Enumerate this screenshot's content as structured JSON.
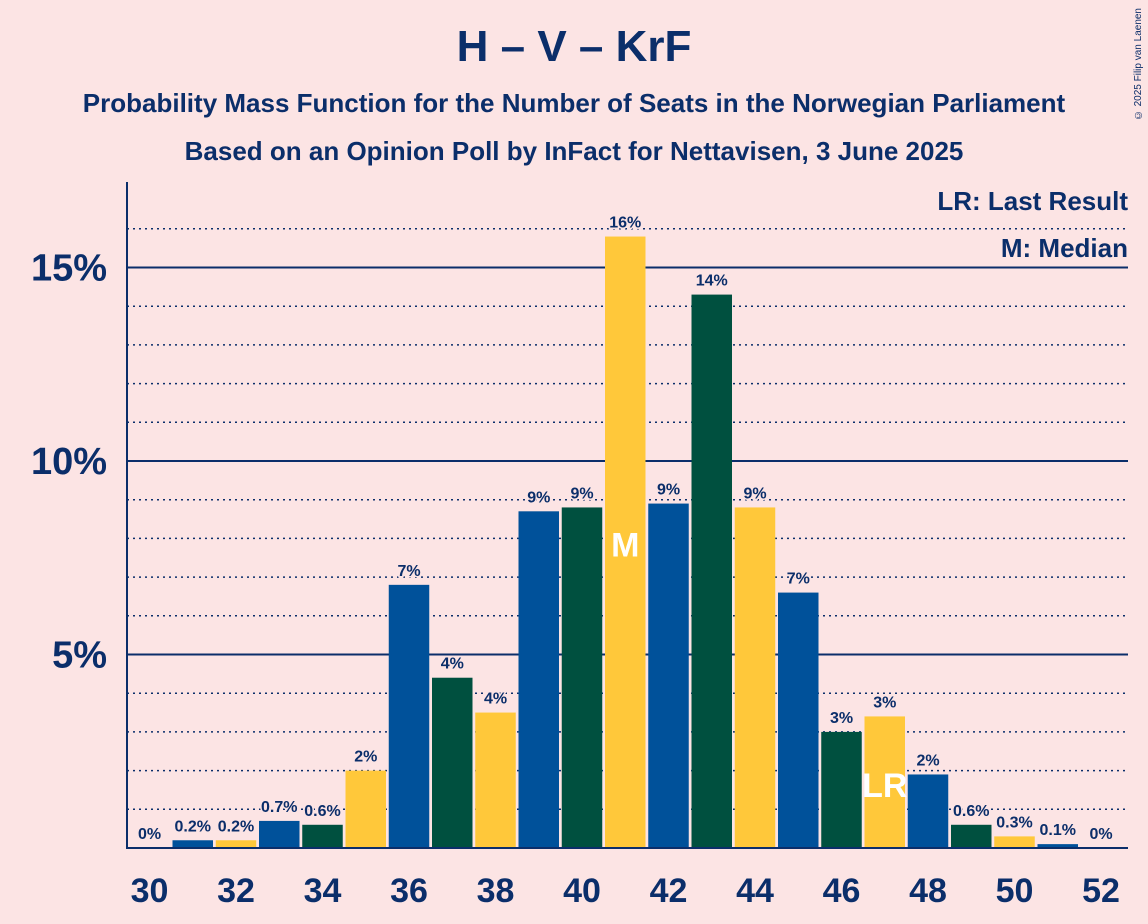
{
  "title": "H – V – KrF",
  "subtitle_line1": "Probability Mass Function for the Number of Seats in the Norwegian Parliament",
  "subtitle_line2": "Based on an Opinion Poll by InFact for Nettavisen, 3 June 2025",
  "copyright": "© 2025 Filip van Laenen",
  "legend": {
    "lr": "LR: Last Result",
    "m": "M: Median"
  },
  "colors": {
    "blue": "#00519A",
    "green": "#00503F",
    "yellow": "#FFC83A",
    "axis": "#0B2E6A",
    "background": "#FCE4E4"
  },
  "chart_data": {
    "type": "bar",
    "x": [
      30,
      31,
      32,
      33,
      34,
      35,
      36,
      37,
      38,
      39,
      40,
      41,
      42,
      43,
      44,
      45,
      46,
      47,
      48,
      49,
      50,
      51,
      52
    ],
    "values": [
      0,
      0.2,
      0.2,
      0.7,
      0.6,
      2,
      6.8,
      4.4,
      3.5,
      8.7,
      8.8,
      15.8,
      8.9,
      14.3,
      8.8,
      6.6,
      3.0,
      3.4,
      1.9,
      0.6,
      0.3,
      0.1,
      0
    ],
    "labels": [
      "0%",
      "0.2%",
      "0.2%",
      "0.7%",
      "0.6%",
      "2%",
      "7%",
      "4%",
      "4%",
      "9%",
      "9%",
      "16%",
      "9%",
      "14%",
      "9%",
      "7%",
      "3%",
      "3%",
      "2%",
      "0.6%",
      "0.3%",
      "0.1%",
      "0%"
    ],
    "bar_colors": [
      "blue",
      "blue",
      "yellow",
      "blue",
      "green",
      "yellow",
      "blue",
      "green",
      "yellow",
      "blue",
      "green",
      "yellow",
      "blue",
      "green",
      "yellow",
      "blue",
      "green",
      "yellow",
      "blue",
      "green",
      "yellow",
      "blue",
      "green"
    ],
    "x_ticks": [
      30,
      32,
      34,
      36,
      38,
      40,
      42,
      44,
      46,
      48,
      50,
      52
    ],
    "y_ticks": [
      {
        "value": 5,
        "label": "5%"
      },
      {
        "value": 10,
        "label": "10%"
      },
      {
        "value": 15,
        "label": "15%"
      }
    ],
    "ylim": [
      0,
      17.2
    ],
    "median": 41,
    "median_label": "M",
    "last_result": 47,
    "last_result_label": "LR",
    "legend_position": "top-right"
  }
}
